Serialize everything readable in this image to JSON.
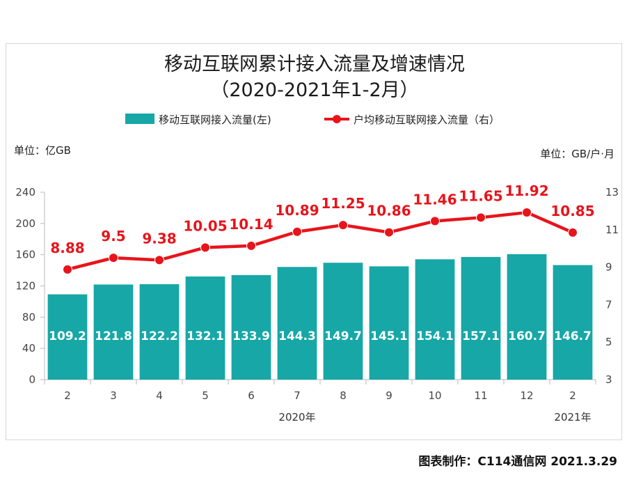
{
  "credit": "图表制作：C114通信网  2021.3.29",
  "chart_data": {
    "type": "bar",
    "title": "移动互联网累计接入流量及增速情况",
    "subtitle": "（2020-2021年1-2月）",
    "left_unit": "单位：亿GB",
    "right_unit": "单位：GB/户·月",
    "categories": [
      "2",
      "3",
      "4",
      "5",
      "6",
      "7",
      "8",
      "9",
      "10",
      "11",
      "12",
      "2"
    ],
    "year_labels": [
      {
        "label": "2020年",
        "span": [
          0,
          10
        ]
      },
      {
        "label": "2021年",
        "span": [
          11,
          11
        ]
      }
    ],
    "ylim_left": [
      0,
      240
    ],
    "yticks_left": [
      0,
      40,
      80,
      120,
      160,
      200,
      240
    ],
    "ylim_right": [
      3,
      13
    ],
    "yticks_right": [
      3,
      5,
      7,
      9,
      11,
      13
    ],
    "grid": false,
    "legend_position": "top",
    "series": [
      {
        "name": "移动互联网接入流量(左)",
        "type": "bar",
        "axis": "left",
        "color": "#17a7a7",
        "values": [
          109.2,
          121.8,
          122.2,
          132.1,
          133.9,
          144.3,
          149.7,
          145.1,
          154.1,
          157.1,
          160.7,
          146.7
        ],
        "labels": [
          "109.2",
          "121.8",
          "122.2",
          "132.1",
          "133.9",
          "144.3",
          "149.7",
          "145.1",
          "154.1",
          "157.1",
          "160.7",
          "146.7"
        ]
      },
      {
        "name": "户均移动互联网接入流量（右）",
        "type": "line",
        "axis": "right",
        "color": "#e8141b",
        "values": [
          8.88,
          9.5,
          9.38,
          10.05,
          10.14,
          10.89,
          11.25,
          10.86,
          11.46,
          11.65,
          11.92,
          10.85
        ],
        "labels": [
          "8.88",
          "9.5",
          "9.38",
          "10.05",
          "10.14",
          "10.89",
          "11.25",
          "10.86",
          "11.46",
          "11.65",
          "11.92",
          "10.85"
        ]
      }
    ]
  }
}
